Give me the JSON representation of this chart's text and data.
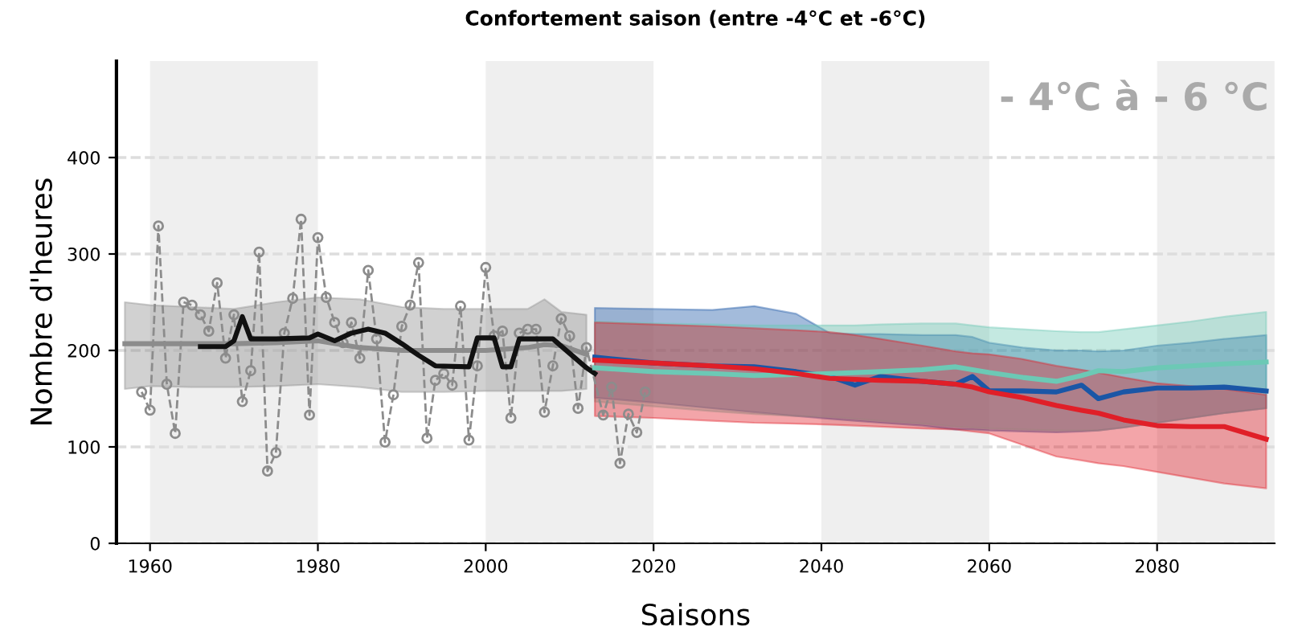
{
  "chart_data": {
    "type": "line",
    "title": "Confortement saison (entre -4°C et -6°C)",
    "xlabel": "Saisons",
    "ylabel": "Nombre d'heures",
    "annotations": [
      "- 4°C à - 6 °C"
    ],
    "xlim": [
      1956,
      2094
    ],
    "ylim": [
      0,
      500
    ],
    "xticks": [
      1960,
      1980,
      2000,
      2020,
      2040,
      2060,
      2080
    ],
    "yticks": [
      0,
      100,
      200,
      300,
      400
    ],
    "grid": "y",
    "bands": [
      {
        "axis": "x",
        "from": 1960,
        "to": 1980,
        "color": "#efefef"
      },
      {
        "axis": "x",
        "from": 2000,
        "to": 2020,
        "color": "#efefef"
      },
      {
        "axis": "x",
        "from": 2040,
        "to": 2060,
        "color": "#efefef"
      },
      {
        "axis": "x",
        "from": 2080,
        "to": 2094,
        "color": "#efefef"
      }
    ],
    "series": [
      {
        "color": "#8c8c8c",
        "line_style": "solid",
        "marker": "none",
        "x": [
          1957,
          1960,
          1965,
          1970,
          1975,
          1980,
          1985,
          1990,
          1995,
          2000,
          2005,
          2007,
          2009,
          2012
        ],
        "values": [
          207,
          207,
          207,
          207,
          208,
          210,
          203,
          200,
          200,
          200,
          203,
          206,
          205,
          196
        ],
        "upper": [
          250,
          247,
          245,
          243,
          250,
          255,
          253,
          245,
          243,
          243,
          243,
          253,
          240,
          237
        ],
        "lower": [
          160,
          163,
          162,
          162,
          163,
          165,
          162,
          157,
          157,
          158,
          158,
          158,
          158,
          160
        ]
      },
      {
        "color": "#8c8c8c",
        "line_style": "dashed",
        "marker": "circle",
        "x": [
          1959,
          1960,
          1961,
          1962,
          1963,
          1964,
          1965,
          1966,
          1967,
          1968,
          1969,
          1970,
          1971,
          1972,
          1973,
          1974,
          1975,
          1976,
          1977,
          1978,
          1979,
          1980,
          1981,
          1982,
          1983,
          1984,
          1985,
          1986,
          1987,
          1988,
          1989,
          1990,
          1991,
          1992,
          1993,
          1994,
          1995,
          1996,
          1997,
          1998,
          1999,
          2000,
          2001,
          2002,
          2003,
          2004,
          2005,
          2006,
          2007,
          2008,
          2009,
          2010,
          2011,
          2012,
          2014,
          2015,
          2016,
          2017,
          2018,
          2019
        ],
        "values": [
          157,
          138,
          329,
          165,
          114,
          250,
          247,
          237,
          220,
          270,
          192,
          237,
          147,
          179,
          302,
          75,
          94,
          218,
          254,
          336,
          133,
          317,
          255,
          229,
          208,
          229,
          192,
          283,
          212,
          105,
          154,
          225,
          247,
          291,
          109,
          169,
          176,
          164,
          246,
          107,
          184,
          286,
          215,
          220,
          130,
          218,
          222,
          222,
          136,
          184,
          233,
          215,
          140,
          203,
          133,
          162,
          83,
          134,
          115,
          157
        ]
      },
      {
        "color": "#111111",
        "line_style": "solid",
        "marker": "none",
        "x": [
          1966,
          1969,
          1970,
          1971,
          1972,
          1975,
          1979,
          1980,
          1982,
          1984,
          1986,
          1988,
          1990,
          1992,
          1994,
          1998,
          1999,
          2001,
          2002,
          2003,
          2004,
          2008,
          2010,
          2012,
          2013
        ],
        "values": [
          204,
          204,
          210,
          235,
          212,
          212,
          213,
          217,
          210,
          218,
          222,
          218,
          207,
          195,
          184,
          183,
          213,
          213,
          183,
          183,
          212,
          212,
          197,
          182,
          176
        ]
      },
      {
        "color": "#1a56a6",
        "line_style": "solid",
        "marker": "none",
        "x": [
          2013,
          2020,
          2027,
          2032,
          2037,
          2041,
          2044,
          2047,
          2052,
          2056,
          2058,
          2060,
          2064,
          2068,
          2071,
          2073,
          2076,
          2080,
          2084,
          2088,
          2093
        ],
        "values": [
          193,
          187,
          184,
          183,
          178,
          173,
          164,
          173,
          168,
          165,
          173,
          158,
          158,
          157,
          164,
          150,
          157,
          161,
          161,
          162,
          158
        ],
        "upper": [
          244,
          243,
          242,
          246,
          238,
          218,
          217,
          217,
          216,
          216,
          214,
          208,
          203,
          200,
          200,
          199,
          200,
          205,
          208,
          212,
          216
        ],
        "lower": [
          151,
          146,
          140,
          136,
          132,
          129,
          127,
          125,
          122,
          118,
          118,
          117,
          116,
          115,
          116,
          117,
          120,
          125,
          130,
          135,
          140
        ]
      },
      {
        "color": "#6cc9b5",
        "line_style": "solid",
        "marker": "none",
        "x": [
          2013,
          2020,
          2027,
          2032,
          2037,
          2041,
          2044,
          2047,
          2052,
          2056,
          2058,
          2060,
          2064,
          2068,
          2071,
          2073,
          2076,
          2080,
          2084,
          2088,
          2093
        ],
        "values": [
          182,
          178,
          176,
          174,
          175,
          176,
          177,
          178,
          180,
          183,
          180,
          177,
          172,
          168,
          174,
          179,
          178,
          182,
          184,
          186,
          188
        ],
        "upper": [
          230,
          228,
          227,
          226,
          226,
          226,
          226,
          227,
          228,
          228,
          226,
          224,
          222,
          220,
          219,
          219,
          222,
          226,
          230,
          235,
          240
        ],
        "lower": [
          147,
          142,
          137,
          134,
          132,
          131,
          129,
          127,
          124,
          121,
          120,
          119,
          118,
          117,
          117,
          117,
          120,
          125,
          130,
          135,
          140
        ]
      },
      {
        "color": "#e01f28",
        "line_style": "solid",
        "marker": "none",
        "x": [
          2013,
          2020,
          2027,
          2032,
          2037,
          2041,
          2044,
          2047,
          2052,
          2056,
          2058,
          2060,
          2064,
          2068,
          2071,
          2073,
          2076,
          2080,
          2084,
          2088,
          2093
        ],
        "values": [
          190,
          187,
          184,
          181,
          176,
          171,
          170,
          169,
          168,
          165,
          162,
          157,
          151,
          143,
          138,
          135,
          128,
          122,
          121,
          121,
          108
        ],
        "upper": [
          229,
          227,
          225,
          223,
          221,
          219,
          216,
          212,
          205,
          199,
          197,
          196,
          191,
          184,
          180,
          177,
          172,
          166,
          163,
          160,
          154
        ],
        "lower": [
          132,
          130,
          127,
          125,
          124,
          123,
          122,
          121,
          119,
          118,
          116,
          114,
          102,
          90,
          86,
          83,
          80,
          74,
          68,
          62,
          57
        ]
      }
    ]
  }
}
